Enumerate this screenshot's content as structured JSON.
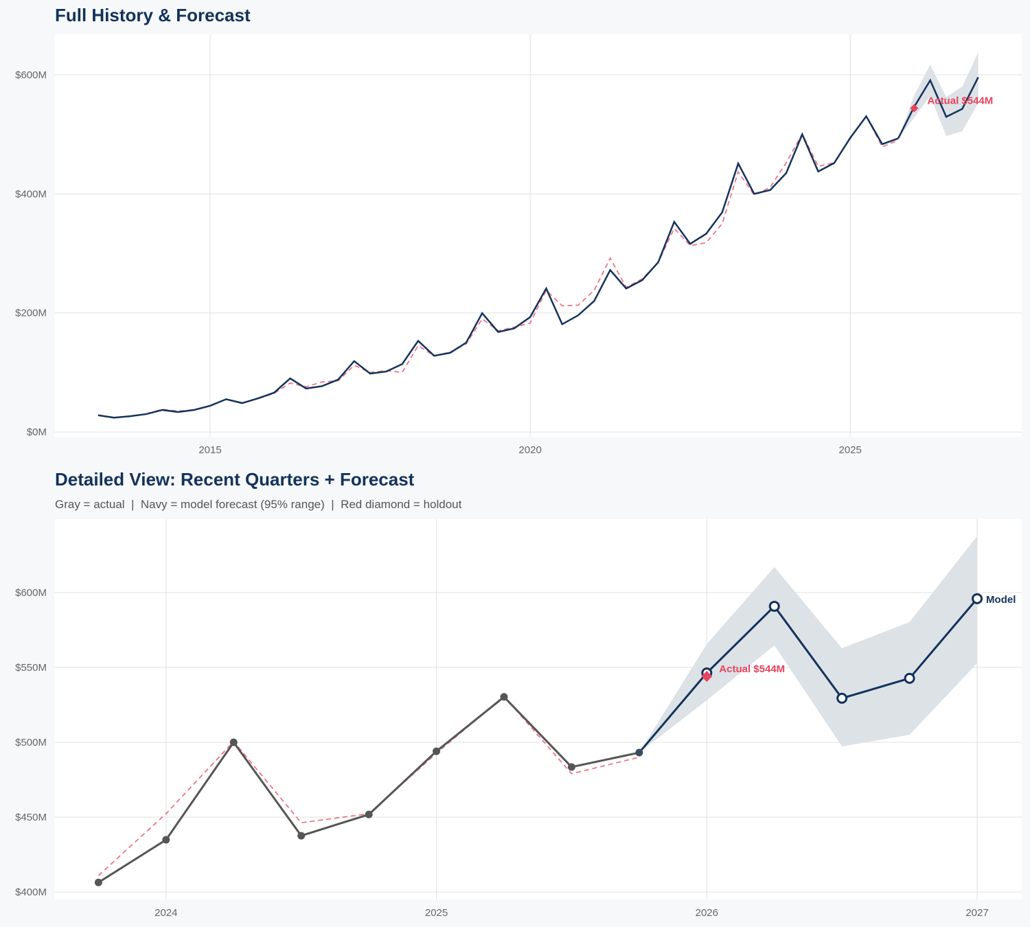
{
  "colors": {
    "navy": "#13325b",
    "gray": "#555555",
    "red": "#e8445f",
    "band": "#dbe0e6",
    "grid": "#e0e0e0"
  },
  "chart_data": [
    {
      "type": "line",
      "title": "Full History & Forecast",
      "xlim": [
        2012.575,
        2027.68
      ],
      "ylim": [
        -8,
        668
      ],
      "xticks": [
        2015,
        2020,
        2025
      ],
      "xtick_labels": [
        "2015",
        "2020",
        "2025"
      ],
      "yticks": [
        0,
        200,
        400,
        600
      ],
      "ytick_labels": [
        "$0M",
        "$200M",
        "$400M",
        "$600M"
      ],
      "x_start": 2013.25,
      "x_step": 0.25,
      "actual": [
        28,
        24,
        26.5,
        30,
        37,
        33.5,
        37,
        44,
        55,
        48.5,
        56.5,
        66,
        90,
        73,
        77,
        88,
        119,
        98,
        101.5,
        114,
        153,
        128,
        133,
        150,
        199.6,
        168,
        174,
        193,
        241,
        181,
        196,
        220,
        272,
        241,
        255,
        285,
        353,
        316,
        333,
        369,
        451,
        400,
        406.4,
        434.9,
        500,
        437.6,
        451.8,
        494,
        530.3,
        483.5,
        493.1
      ],
      "fitted": [
        28,
        24,
        26.5,
        30,
        38,
        35,
        37,
        44,
        55,
        49,
        56,
        65,
        82,
        76,
        84,
        86,
        112,
        100,
        103,
        100,
        145,
        128,
        134,
        148,
        190,
        170,
        176,
        183,
        238,
        212,
        213,
        238,
        292,
        243,
        257,
        285,
        342,
        313,
        318,
        350,
        437,
        398,
        411,
        452.3,
        500.5,
        446.3,
        452.3,
        492.7,
        530.7,
        479,
        490
      ],
      "forecast_x": [
        2025.75,
        2026.0,
        2026.25,
        2026.5,
        2026.75,
        2027.0
      ],
      "forecast": [
        493.1,
        546.3,
        590.8,
        529.4,
        542.7,
        595.9
      ],
      "band_upper": [
        493.1,
        565.6,
        617,
        562.8,
        580.3,
        637.6
      ],
      "band_lower": [
        493.1,
        528,
        564.7,
        497.2,
        505,
        552.8
      ],
      "holdout": {
        "x": 2026.0,
        "y": 544,
        "label": "Actual $544M"
      }
    },
    {
      "type": "line",
      "title": "Detailed View: Recent Quarters + Forecast",
      "subtitle": "Gray = actual  |  Navy = model forecast (95% range)  |  Red diamond = holdout",
      "xlim": [
        2023.589,
        2027.165
      ],
      "ylim": [
        395,
        649
      ],
      "xticks": [
        2024,
        2025,
        2026,
        2027
      ],
      "xtick_labels": [
        "2024",
        "2025",
        "2026",
        "2027"
      ],
      "yticks": [
        400,
        450,
        500,
        550,
        600
      ],
      "ytick_labels": [
        "$400M",
        "$450M",
        "$500M",
        "$550M",
        "$600M"
      ],
      "x_start": 2023.75,
      "x_step": 0.25,
      "actual": [
        406.4,
        434.9,
        500,
        437.6,
        451.8,
        494,
        530.3,
        483.5,
        493.1
      ],
      "fitted": [
        411,
        452.3,
        500.5,
        446.3,
        452.3,
        492.7,
        530.7,
        479,
        490
      ],
      "forecast_x": [
        2025.75,
        2026.0,
        2026.25,
        2026.5,
        2026.75,
        2027.0
      ],
      "forecast": [
        493.1,
        546.3,
        590.8,
        529.4,
        542.7,
        595.9
      ],
      "band_upper": [
        493.1,
        565.6,
        617,
        562.8,
        580.3,
        637.6
      ],
      "band_lower": [
        493.1,
        528,
        564.7,
        497.2,
        505,
        552.8
      ],
      "holdout": {
        "x": 2026.0,
        "y": 544,
        "label": "Actual $544M"
      },
      "forecast_label": "Model"
    }
  ]
}
